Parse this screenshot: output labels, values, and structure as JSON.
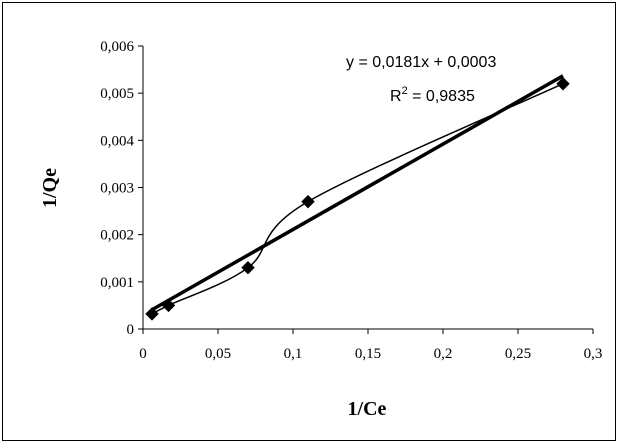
{
  "chart_data": {
    "type": "scatter",
    "xlabel": "1/Ce",
    "ylabel": "1/Qe",
    "xlim": [
      0,
      0.3
    ],
    "ylim": [
      0,
      0.006
    ],
    "x_ticks": [
      "0",
      "0,05",
      "0,1",
      "0,15",
      "0,2",
      "0,25",
      "0,3"
    ],
    "y_ticks": [
      "0",
      "0,001",
      "0,002",
      "0,003",
      "0,004",
      "0,005",
      "0,006"
    ],
    "grid": false,
    "series": [
      {
        "points": [
          {
            "x": 0.006,
            "y": 0.00032
          },
          {
            "x": 0.017,
            "y": 0.0005
          },
          {
            "x": 0.07,
            "y": 0.0013
          },
          {
            "x": 0.11,
            "y": 0.0027
          },
          {
            "x": 0.28,
            "y": 0.0052
          }
        ],
        "marker": "diamond",
        "smooth_line": true,
        "color": "#000000"
      }
    ],
    "trendline": {
      "type": "linear",
      "slope": 0.0181,
      "intercept": 0.0003,
      "x_range": [
        0.006,
        0.28
      ],
      "equation_text": "y = 0,0181x + 0,0003",
      "r2_prefix": "R",
      "r2_sup": "2",
      "r2_value": " = 0,9835"
    }
  }
}
